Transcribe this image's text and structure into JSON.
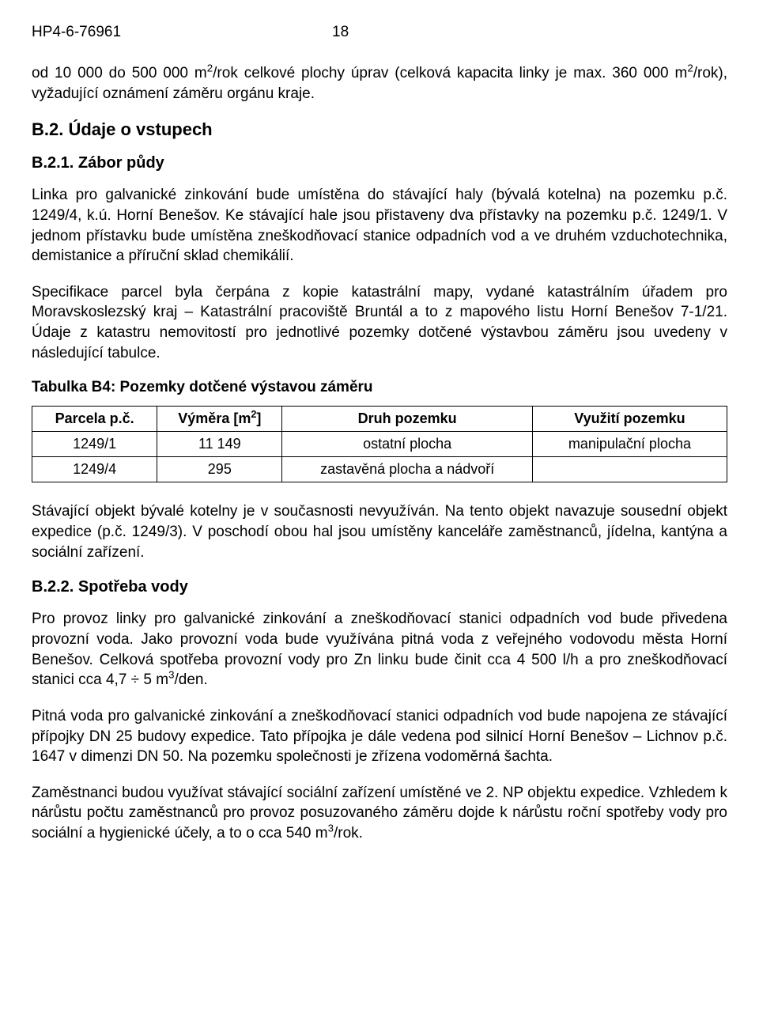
{
  "header": {
    "doc_id": "HP4-6-76961",
    "page_num": "18"
  },
  "para1_html": "od 10 000 do 500 000 m<sup>2</sup>/rok celkové plochy úprav (celková kapacita linky je max. 360 000 m<sup>2</sup>/rok), vyžadující oznámení záměru orgánu kraje.",
  "sec_b2": "B.2.  Údaje o vstupech",
  "sec_b21": "B.2.1. Zábor půdy",
  "para2": "Linka pro galvanické zinkování bude umístěna do stávající haly (bývalá kotelna) na pozemku p.č. 1249/4, k.ú. Horní Benešov. Ke stávající hale jsou přistaveny dva přístavky na pozemku p.č. 1249/1. V jednom přístavku bude umístěna zneškodňovací stanice odpadních vod a ve druhém vzduchotechnika, demistanice a příruční sklad chemikálií.",
  "para3": "Specifikace parcel byla čerpána z kopie katastrální mapy, vydané katastrálním úřadem pro Moravskoslezský kraj – Katastrální pracoviště Bruntál a to z mapového listu Horní Benešov 7-1/21. Údaje z katastru nemovitostí pro jednotlivé pozemky dotčené výstavbou záměru jsou uvedeny v následující tabulce.",
  "table_b4": {
    "caption": "Tabulka B4:   Pozemky dotčené výstavou záměru",
    "columns": [
      {
        "label": "Parcela p.č.",
        "width": "18%"
      },
      {
        "label_html": "Výměra [m<sup>2</sup>]",
        "width": "18%"
      },
      {
        "label": "Druh pozemku",
        "width": "36%"
      },
      {
        "label": "Využití pozemku",
        "width": "28%"
      }
    ],
    "rows": [
      [
        "1249/1",
        "11 149",
        "ostatní plocha",
        "manipulační plocha"
      ],
      [
        "1249/4",
        "295",
        "zastavěná plocha a nádvoří",
        ""
      ]
    ]
  },
  "para4": "Stávající  objekt  bývalé  kotelny  je  v současnosti  nevyužíván.  Na  tento  objekt  navazuje sousední  objekt  expedice  (p.č.  1249/3).  V poschodí  obou  hal  jsou  umístěny  kanceláře zaměstnanců, jídelna, kantýna a sociální zařízení.",
  "sec_b22": "B.2.2. Spotřeba vody",
  "para5_html": "Pro  provoz  linky  pro  galvanické  zinkování  a  zneškodňovací  stanici  odpadních  vod  bude přivedena  provozní  voda.  Jako  provozní  voda  bude  využívána pitná  voda  z veřejného vodovodu města Horní Benešov. Celková spotřeba provozní vody pro Zn linku bude činit cca 4 500 l/h a pro zneškodňovací stanici cca 4,7 ÷ 5 m<sup>3</sup>/den.",
  "para6": "Pitná voda pro galvanické zinkování a zneškodňovací stanici odpadních vod bude napojena ze stávající přípojky DN 25 budovy expedice. Tato přípojka je dále vedena pod silnicí Horní Benešov  –  Lichnov  p.č.  1647  v dimenzi  DN  50.  Na  pozemku  společnosti  je  zřízena vodoměrná šachta.",
  "para7_html": "Zaměstnanci budou využívat stávající sociální zařízení umístěné ve 2. NP objektu expedice. Vzhledem k nárůstu počtu zaměstnanců pro provoz posuzovaného záměru dojde k nárůstu roční spotřeby vody pro sociální a hygienické účely, a to o cca 540 m<sup>3</sup>/rok."
}
